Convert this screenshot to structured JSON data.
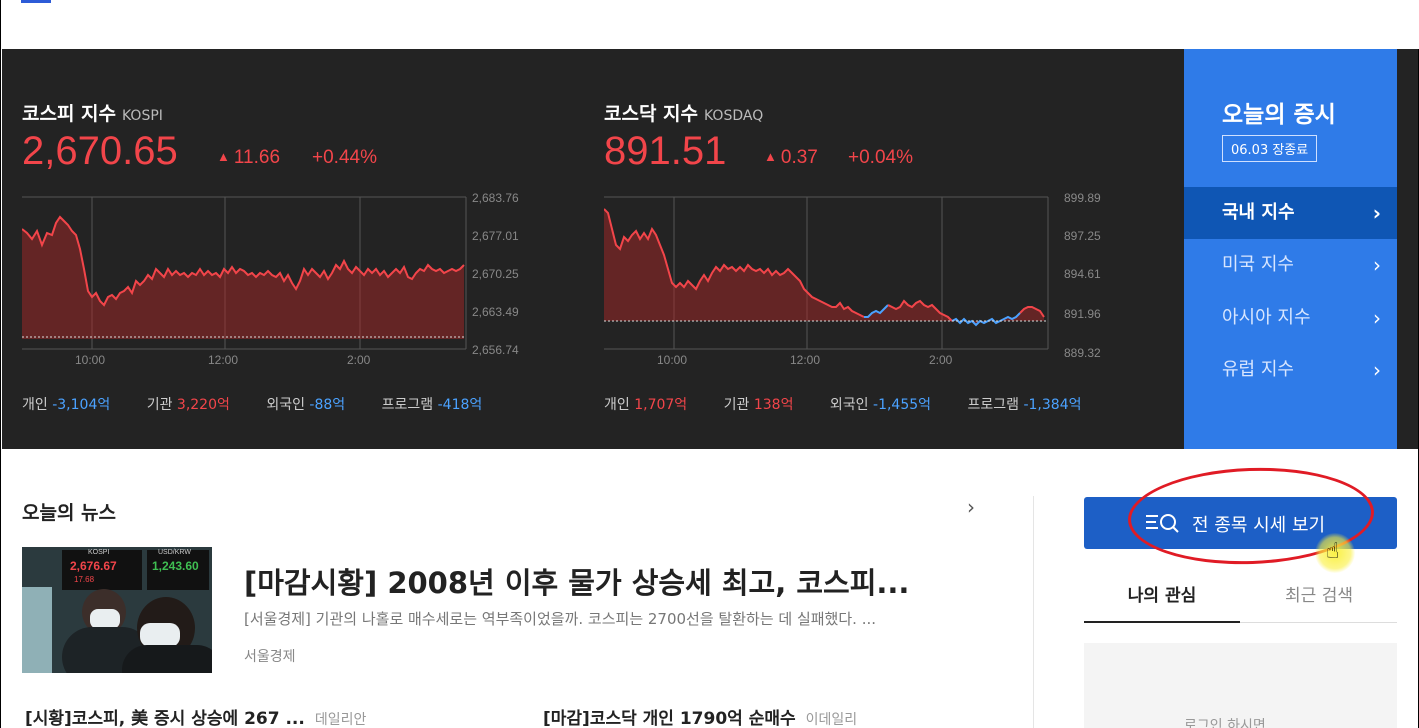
{
  "market": {
    "kospi": {
      "title": "코스피 지수",
      "code": "KOSPI",
      "value": "2,670.65",
      "change": "11.66",
      "change_pct": "+0.44%",
      "y_ticks": [
        "2,683.76",
        "2,677.01",
        "2,670.25",
        "2,663.49",
        "2,656.74"
      ],
      "x_ticks": [
        "10:00",
        "12:00",
        "2:00"
      ],
      "investors": [
        {
          "label": "개인",
          "value": "-3,104억"
        },
        {
          "label": "기관",
          "value": "3,220억"
        },
        {
          "label": "외국인",
          "value": "-88억"
        },
        {
          "label": "프로그램",
          "value": "-418억"
        }
      ]
    },
    "kosdaq": {
      "title": "코스닥 지수",
      "code": "KOSDAQ",
      "value": "891.51",
      "change": "0.37",
      "change_pct": "+0.04%",
      "y_ticks": [
        "899.89",
        "897.25",
        "894.61",
        "891.96",
        "889.32"
      ],
      "x_ticks": [
        "10:00",
        "12:00",
        "2:00"
      ],
      "investors": [
        {
          "label": "개인",
          "value": "1,707억"
        },
        {
          "label": "기관",
          "value": "138억"
        },
        {
          "label": "외국인",
          "value": "-1,455억"
        },
        {
          "label": "프로그램",
          "value": "-1,384억"
        }
      ]
    },
    "colors": {
      "up": "#f2454a",
      "down": "#4ba2ff",
      "panel_bg": "#232323",
      "accent": "#2f7be8"
    }
  },
  "today": {
    "title": "오늘의 증시",
    "badge": "06.03 장종료",
    "nav": [
      {
        "label": "국내 지수",
        "active": true
      },
      {
        "label": "미국 지수",
        "active": false
      },
      {
        "label": "아시아 지수",
        "active": false
      },
      {
        "label": "유럽 지수",
        "active": false
      }
    ]
  },
  "news": {
    "heading": "오늘의 뉴스",
    "thumb_text": {
      "kospi_label": "KOSPI",
      "kospi_value": "2,676.67",
      "kospi_change": "17.68",
      "usd_label": "USD/KRW",
      "usd_value": "1,243.60"
    },
    "main": {
      "headline": "[마감시황] 2008년 이후 물가 상승세 최고, 코스피...",
      "summary": "[서울경제] 기관의 나홀로 매수세로는 역부족이었을까. 코스피는 2700선을 탈환하는 데 실패했다. ...",
      "source": "서울경제"
    },
    "sub": [
      {
        "title": "[시황]코스피, 美 증시 상승에 267 ...",
        "source": "데일리안"
      },
      {
        "title": "[마감]코스닥 개인 1790억 순매수",
        "source": "이데일리"
      }
    ]
  },
  "side": {
    "all_stocks_label": "전 종목 시세 보기",
    "tabs": [
      "나의 관심",
      "최근 검색"
    ],
    "login_hint": "로그인 하시면"
  }
}
